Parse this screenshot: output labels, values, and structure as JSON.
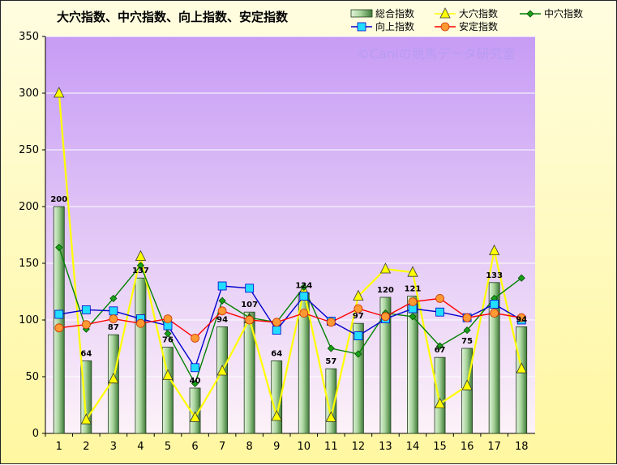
{
  "chart_data": {
    "type": "bar",
    "title": "大穴指数、中穴指数、向上指数、安定指数",
    "watermark": "©Caniの競馬データ研究室",
    "categories": [
      "1",
      "2",
      "3",
      "4",
      "5",
      "6",
      "7",
      "8",
      "9",
      "10",
      "11",
      "12",
      "13",
      "14",
      "15",
      "16",
      "17",
      "18"
    ],
    "ylim": [
      0,
      350
    ],
    "yticks": [
      0,
      50,
      100,
      150,
      200,
      250,
      300,
      350
    ],
    "grid": true,
    "legend": "top-right",
    "series": [
      {
        "name": "総合指数",
        "type": "bar",
        "color": "#9acc8f",
        "values": [
          200,
          64,
          87,
          137,
          76,
          40,
          94,
          107,
          64,
          124,
          57,
          97,
          120,
          121,
          67,
          75,
          133,
          94
        ],
        "labels": [
          "200",
          "64",
          "87",
          "137",
          "76",
          "40",
          "94",
          "107",
          "64",
          "124",
          "57",
          "97",
          "120",
          "121",
          "67",
          "75",
          "133",
          "94"
        ]
      },
      {
        "name": "大穴指数",
        "type": "line",
        "marker": "triangle",
        "color": "#ffff00",
        "values": [
          300,
          12,
          48,
          156,
          51,
          14,
          55,
          101,
          15,
          126,
          14,
          121,
          145,
          142,
          26,
          42,
          161,
          57
        ]
      },
      {
        "name": "中穴指数",
        "type": "line",
        "marker": "diamond",
        "color": "#008000",
        "values": [
          164,
          92,
          119,
          148,
          88,
          44,
          117,
          102,
          98,
          129,
          75,
          70,
          106,
          103,
          77,
          91,
          119,
          137
        ]
      },
      {
        "name": "向上指数",
        "type": "line",
        "marker": "square",
        "color": "#0000cc",
        "values": [
          105,
          109,
          108,
          101,
          95,
          58,
          130,
          128,
          91,
          121,
          99,
          86,
          101,
          110,
          107,
          102,
          114,
          100
        ]
      },
      {
        "name": "安定指数",
        "type": "line",
        "marker": "circle",
        "color": "#ff0000",
        "values": [
          93,
          96,
          101,
          97,
          101,
          84,
          108,
          100,
          98,
          106,
          98,
          110,
          103,
          116,
          119,
          102,
          106,
          102
        ]
      }
    ]
  }
}
